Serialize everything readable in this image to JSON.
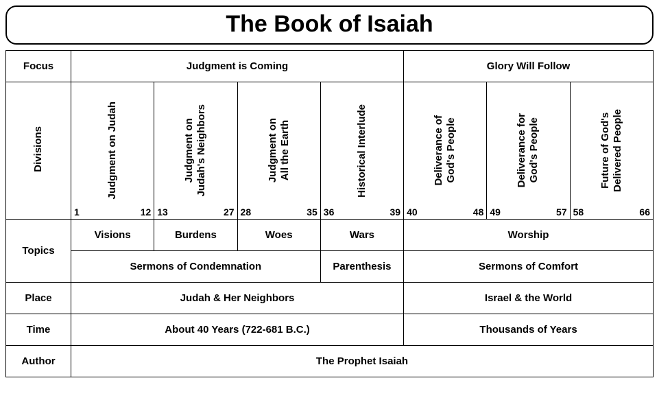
{
  "title": "The Book of Isaiah",
  "labels": {
    "focus": "Focus",
    "divisions": "Divisions",
    "topics": "Topics",
    "place": "Place",
    "time": "Time",
    "author": "Author"
  },
  "focus": {
    "left": "Judgment is Coming",
    "right": "Glory Will Follow"
  },
  "divisions": [
    {
      "label": "Judgment on Judah",
      "start": "1",
      "end": "12"
    },
    {
      "label": "Judgment on\nJudah's Neighbors",
      "start": "13",
      "end": "27"
    },
    {
      "label": "Judgment on\nAll the Earth",
      "start": "28",
      "end": "35"
    },
    {
      "label": "Historical Interlude",
      "start": "36",
      "end": "39"
    },
    {
      "label": "Deliverance of\nGod's People",
      "start": "40",
      "end": "48"
    },
    {
      "label": "Deliverance for\nGod's People",
      "start": "49",
      "end": "57"
    },
    {
      "label": "Future of God's\nDelivered People",
      "start": "58",
      "end": "66"
    }
  ],
  "topics_row1": {
    "c1": "Visions",
    "c2": "Burdens",
    "c3": "Woes",
    "c4": "Wars",
    "c5": "Worship"
  },
  "topics_row2": {
    "c1": "Sermons of Condemnation",
    "c2": "Parenthesis",
    "c3": "Sermons of Comfort"
  },
  "place": {
    "left": "Judah & Her Neighbors",
    "right": "Israel & the World"
  },
  "time": {
    "left": "About 40 Years (722-681 B.C.)",
    "right": "Thousands of Years"
  },
  "author": "The Prophet Isaiah",
  "style": {
    "background": "#ffffff",
    "border_color": "#000000",
    "title_fontsize": 34,
    "cell_fontsize": 15,
    "chapter_fontsize": 14,
    "font_family": "Arial"
  }
}
